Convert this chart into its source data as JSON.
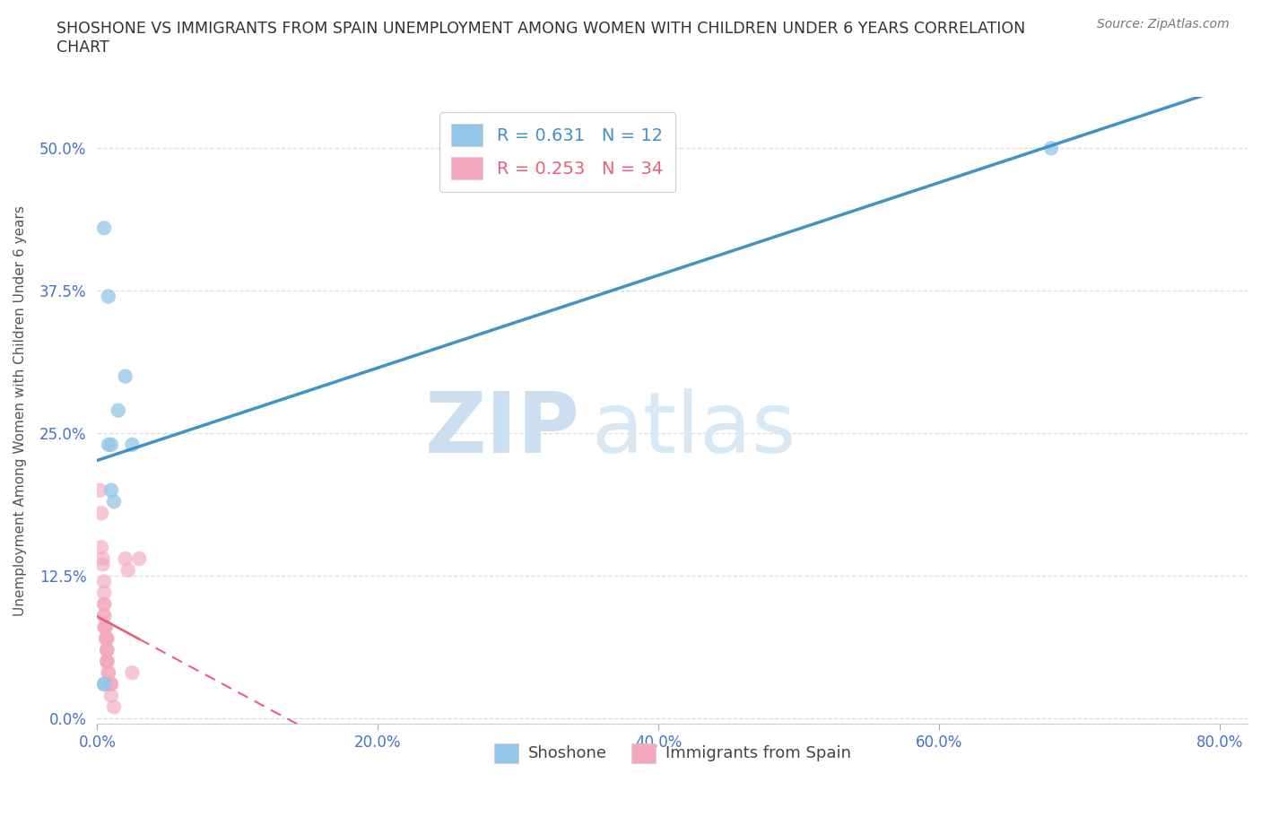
{
  "title": "SHOSHONE VS IMMIGRANTS FROM SPAIN UNEMPLOYMENT AMONG WOMEN WITH CHILDREN UNDER 6 YEARS CORRELATION\nCHART",
  "source": "Source: ZipAtlas.com",
  "ylabel": "Unemployment Among Women with Children Under 6 years",
  "shoshone_x": [
    0.005,
    0.008,
    0.008,
    0.01,
    0.01,
    0.012,
    0.015,
    0.02,
    0.025,
    0.005,
    0.005,
    0.68
  ],
  "shoshone_y": [
    0.43,
    0.37,
    0.24,
    0.24,
    0.2,
    0.19,
    0.27,
    0.3,
    0.24,
    0.03,
    0.03,
    0.5
  ],
  "spain_x": [
    0.002,
    0.003,
    0.003,
    0.004,
    0.004,
    0.005,
    0.005,
    0.005,
    0.005,
    0.005,
    0.005,
    0.005,
    0.006,
    0.006,
    0.006,
    0.007,
    0.007,
    0.007,
    0.007,
    0.007,
    0.007,
    0.007,
    0.007,
    0.008,
    0.008,
    0.009,
    0.01,
    0.01,
    0.01,
    0.012,
    0.02,
    0.022,
    0.025,
    0.03
  ],
  "spain_y": [
    0.2,
    0.18,
    0.15,
    0.14,
    0.135,
    0.12,
    0.11,
    0.1,
    0.1,
    0.09,
    0.09,
    0.08,
    0.08,
    0.08,
    0.07,
    0.07,
    0.07,
    0.06,
    0.06,
    0.06,
    0.05,
    0.05,
    0.05,
    0.04,
    0.04,
    0.03,
    0.03,
    0.03,
    0.02,
    0.01,
    0.14,
    0.13,
    0.04,
    0.14
  ],
  "shoshone_R": 0.631,
  "shoshone_N": 12,
  "spain_R": 0.253,
  "spain_N": 34,
  "shoshone_color": "#93c6e8",
  "spain_color": "#f4a8be",
  "shoshone_line_color": "#4292c6",
  "spain_line_color": "#e8607a",
  "xlim": [
    0.0,
    0.82
  ],
  "ylim": [
    -0.005,
    0.545
  ],
  "xticks": [
    0.0,
    0.2,
    0.4,
    0.6,
    0.8
  ],
  "yticks": [
    0.0,
    0.125,
    0.25,
    0.375,
    0.5
  ],
  "background_color": "#ffffff",
  "grid_color": "#d8d8d8",
  "title_color": "#333333",
  "axis_label_color": "#555555",
  "tick_color": "#4472c4",
  "watermark_zip": "ZIP",
  "watermark_atlas": "atlas",
  "watermark_color": "#ccdff0"
}
